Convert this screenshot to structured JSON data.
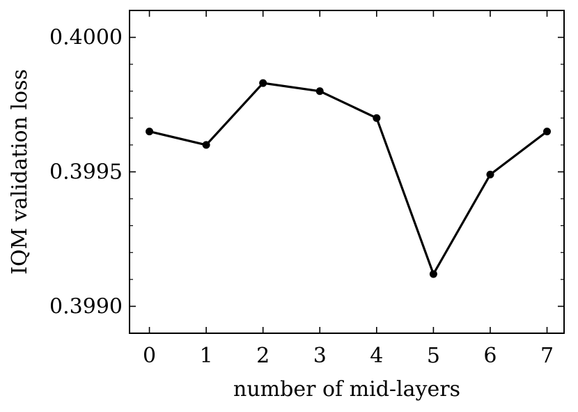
{
  "chart_data": {
    "type": "line",
    "title": "",
    "xlabel": "number of mid-layers",
    "ylabel": "IQM validation loss",
    "x": [
      0,
      1,
      2,
      3,
      4,
      5,
      6,
      7
    ],
    "series": [
      {
        "values": [
          0.39965,
          0.3996,
          0.39983,
          0.3998,
          0.3997,
          0.39912,
          0.39949,
          0.39965
        ]
      }
    ],
    "xticks": [
      0,
      1,
      2,
      3,
      4,
      5,
      6,
      7
    ],
    "xtick_labels": [
      "0",
      "1",
      "2",
      "3",
      "4",
      "5",
      "6",
      "7"
    ],
    "yticks": [
      0.399,
      0.3995,
      0.4
    ],
    "ytick_labels": [
      "0.3990",
      "0.3995",
      "0.4000"
    ],
    "xlim": [
      -0.35,
      7.3
    ],
    "ylim": [
      0.3989,
      0.4001
    ],
    "grid": false,
    "legend": "none",
    "line_color": "#000000",
    "marker": "circle"
  }
}
